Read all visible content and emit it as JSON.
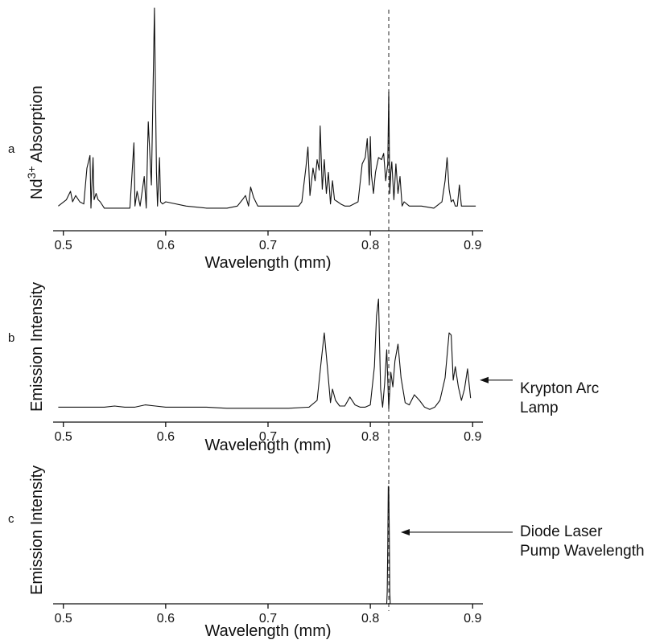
{
  "figure": {
    "colors": {
      "line": "#111111",
      "marker_line": "#555555",
      "background": "#ffffff"
    },
    "marker_line_style": "dashed",
    "marker_x": 0.818
  },
  "chart_data": [
    {
      "type": "line",
      "panel_label": "a",
      "xlabel": "Wavelength (mm)",
      "ylabel_main": "Nd",
      "ylabel_sup": "3+",
      "ylabel_rest": " Absorption",
      "xlim": [
        0.49,
        0.91
      ],
      "ylim": [
        0,
        100
      ],
      "xticks": [
        0.5,
        0.6,
        0.7,
        0.8,
        0.9
      ],
      "xtick_labels": [
        "0.5",
        "0.6",
        "0.7",
        "0.8",
        "0.9"
      ],
      "grid": false,
      "series": [
        {
          "x": [
            0.495,
            0.503,
            0.507,
            0.509,
            0.512,
            0.516,
            0.52,
            0.523,
            0.526,
            0.527,
            0.529,
            0.53,
            0.532,
            0.534,
            0.536,
            0.54,
            0.55,
            0.56,
            0.565,
            0.569,
            0.57,
            0.572,
            0.575,
            0.579,
            0.581,
            0.583,
            0.586,
            0.589,
            0.591,
            0.592,
            0.594,
            0.595,
            0.597,
            0.6,
            0.62,
            0.64,
            0.66,
            0.67,
            0.675,
            0.678,
            0.681,
            0.683,
            0.686,
            0.69,
            0.71,
            0.73,
            0.733,
            0.737,
            0.739,
            0.741,
            0.744,
            0.746,
            0.748,
            0.75,
            0.751,
            0.753,
            0.755,
            0.757,
            0.759,
            0.761,
            0.763,
            0.765,
            0.768,
            0.771,
            0.775,
            0.78,
            0.788,
            0.792,
            0.795,
            0.797,
            0.799,
            0.8,
            0.801,
            0.803,
            0.805,
            0.808,
            0.811,
            0.813,
            0.815,
            0.817,
            0.818,
            0.819,
            0.82,
            0.821,
            0.823,
            0.825,
            0.827,
            0.829,
            0.831,
            0.833,
            0.838,
            0.85,
            0.862,
            0.87,
            0.873,
            0.875,
            0.877,
            0.879,
            0.881,
            0.883,
            0.885,
            0.887,
            0.889,
            0.892,
            0.896,
            0.903
          ],
          "y": [
            6,
            9,
            13,
            8,
            11,
            8,
            7,
            24,
            30,
            5,
            29,
            9,
            12,
            9,
            8,
            5,
            5,
            5,
            5,
            36,
            6,
            13,
            6,
            20,
            5,
            46,
            16,
            100,
            22,
            6,
            29,
            8,
            7,
            8,
            6,
            5,
            5,
            6,
            9,
            11,
            6,
            15,
            10,
            6,
            6,
            6,
            8,
            24,
            34,
            11,
            24,
            18,
            28,
            23,
            44,
            14,
            28,
            12,
            22,
            7,
            18,
            9,
            8,
            7,
            6,
            6,
            8,
            26,
            29,
            38,
            16,
            39,
            21,
            12,
            22,
            29,
            28,
            31,
            18,
            26,
            60,
            12,
            22,
            27,
            9,
            26,
            12,
            20,
            6,
            8,
            6,
            6,
            5,
            8,
            18,
            29,
            14,
            8,
            9,
            6,
            6,
            16,
            6,
            6,
            6,
            6
          ]
        }
      ]
    },
    {
      "type": "line",
      "panel_label": "b",
      "xlabel": "Wavelength (mm)",
      "ylabel": "Emission Intensity",
      "annotation": [
        "Krypton Arc",
        "Lamp"
      ],
      "annotation_x": 0.9,
      "annotation_y": 28,
      "xlim": [
        0.49,
        0.91
      ],
      "ylim": [
        0,
        100
      ],
      "xticks": [
        0.5,
        0.6,
        0.7,
        0.8,
        0.9
      ],
      "xtick_labels": [
        "0.5",
        "0.6",
        "0.7",
        "0.8",
        "0.9"
      ],
      "grid": false,
      "series": [
        {
          "x": [
            0.495,
            0.52,
            0.54,
            0.55,
            0.56,
            0.57,
            0.58,
            0.59,
            0.6,
            0.62,
            0.64,
            0.66,
            0.68,
            0.7,
            0.72,
            0.74,
            0.748,
            0.752,
            0.755,
            0.758,
            0.761,
            0.763,
            0.766,
            0.77,
            0.775,
            0.78,
            0.785,
            0.79,
            0.795,
            0.8,
            0.804,
            0.806,
            0.808,
            0.81,
            0.812,
            0.814,
            0.816,
            0.818,
            0.82,
            0.822,
            0.824,
            0.827,
            0.83,
            0.834,
            0.838,
            0.843,
            0.848,
            0.853,
            0.858,
            0.863,
            0.868,
            0.873,
            0.877,
            0.879,
            0.881,
            0.883,
            0.886,
            0.889,
            0.892,
            0.895,
            0.898
          ],
          "y": [
            4,
            4,
            4,
            5,
            4,
            4,
            6,
            5,
            4,
            4,
            4,
            3,
            3,
            3,
            3,
            4,
            10,
            45,
            70,
            40,
            8,
            20,
            10,
            5,
            5,
            13,
            6,
            4,
            4,
            6,
            40,
            85,
            100,
            20,
            4,
            25,
            55,
            3,
            35,
            22,
            45,
            60,
            30,
            8,
            6,
            15,
            10,
            4,
            2,
            4,
            10,
            30,
            70,
            68,
            28,
            40,
            22,
            10,
            20,
            38,
            12
          ]
        }
      ]
    },
    {
      "type": "line",
      "panel_label": "c",
      "xlabel": "Wavelength (mm)",
      "ylabel": "Emission Intensity",
      "annotation": [
        "Diode Laser",
        "Pump Wavelength"
      ],
      "annotation_x": 0.82,
      "annotation_y": 61,
      "xlim": [
        0.49,
        0.91
      ],
      "ylim": [
        0,
        100
      ],
      "xticks": [
        0.5,
        0.6,
        0.7,
        0.8,
        0.9
      ],
      "xtick_labels": [
        "0.5",
        "0.6",
        "0.7",
        "0.8",
        "0.9"
      ],
      "grid": false,
      "series": [
        {
          "x": [
            0.816,
            0.8165,
            0.817,
            0.8175,
            0.818,
            0.8185,
            0.819,
            0.8195
          ],
          "y": [
            0,
            10,
            50,
            100,
            100,
            60,
            10,
            0
          ]
        }
      ]
    }
  ]
}
